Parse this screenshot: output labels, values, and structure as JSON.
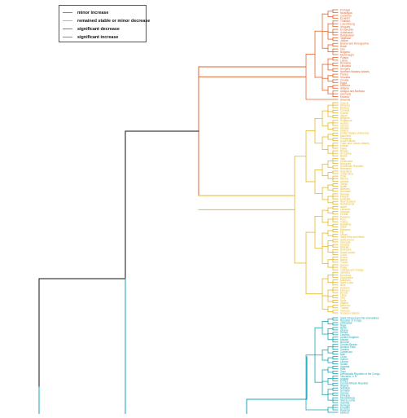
{
  "colors": {
    "trunk": "#111111",
    "minor_increase": "#e0662e",
    "stable": "#e5b82a",
    "significant_decrease": "#17a7b6",
    "significant_increase": "#3aa8b8"
  },
  "legend": [
    {
      "label": "minor increase",
      "color": "#e0662e"
    },
    {
      "label": "remained stable or minor decrease",
      "color": "#e5b82a"
    },
    {
      "label": "significant decrease",
      "color": "#17a7b6"
    },
    {
      "label": "significant increase",
      "color": "#3aa8b8"
    }
  ],
  "clusters": [
    {
      "name": "minor increase",
      "color": "#e0662e",
      "leaves": [
        "Portugal",
        "Nicaragua",
        "Colombia",
        "Ecuador",
        "Thailand",
        "Luxembourg",
        "Uruguay",
        "El Salvador",
        "Uzbekistan",
        "Bangladesh",
        "Tajikistan",
        "Jordan",
        "Bosnia and Herzegovina",
        "Brazil",
        "Iran",
        "Bulgaria",
        "Montenegro",
        "Poland",
        "Latvia",
        "Romania",
        "Lithuania",
        "Hungary",
        "Northern Mariana Islands",
        "France",
        "Slovakia",
        "Croatia",
        "Egypt",
        "Moldova",
        "Albania",
        "Antigua and Barbuda",
        "Germany",
        "Estonia",
        "Slovenia"
      ]
    },
    {
      "name": "remained stable or minor decrease",
      "color": "#e5b82a",
      "leaves": [
        "Cyprus",
        "Armenia",
        "Belarus",
        "Canada",
        "Kuwait",
        "Japan",
        "Belgium",
        "Singapore",
        "Austria",
        "Greece",
        "Ukraine",
        "Ireland",
        "United States of America",
        "Mauritius",
        "Paraguay",
        "Cook Islands",
        "Turks and Caicos Islands",
        "Kiribati",
        "Malta",
        "Bhutan",
        "Sri Lanka",
        "Belize",
        "Italy",
        "Venezuela",
        "Mongolia",
        "Dominican Republic",
        "Barbados",
        "Argentina",
        "Costa Rica",
        "Chile",
        "Mexico",
        "Iceland",
        "Tonga",
        "Spain",
        "Sweden",
        "Denmark",
        "Norway",
        "Finland",
        "Australia",
        "New Zealand",
        "Netherlands",
        "Israel",
        "Lebanon",
        "Georgia",
        "Serbia",
        "Panama",
        "Peru",
        "Turkey",
        "Bahamas",
        "Qatar",
        "Malaysia",
        "Fiji",
        "Oman",
        "Saint Kitts and Nevis",
        "Switzerland",
        "Grenada",
        "Guyana",
        "Bahrain",
        "Suriname",
        "Saudi Arabia",
        "Cuba",
        "Korea",
        "Nauru",
        "Tuvalu",
        "Samoa",
        "Palau",
        "Trinidad and Tobago",
        "Jamaica",
        "Dominica",
        "Seychelles",
        "Maldives",
        "Saint Lucia",
        "Niue",
        "Andorra",
        "Monaco",
        "Brunei",
        "Libya",
        "Iraq",
        "Syria",
        "Algeria",
        "Morocco",
        "Tunisia",
        "Vanuatu",
        "Solomon Islands"
      ]
    },
    {
      "name": "significant decrease",
      "color": "#17a7b6",
      "leaves": [
        "Saint Vincent and the Grenadines",
        "Republic of Congo",
        "Zimbabwe",
        "Niger",
        "Benin",
        "Ghana",
        "Kenya",
        "Lesotho",
        "United Kingdom",
        "Malawi",
        "Burundi",
        "Guinea-Bissau",
        "Burkina Faso",
        "Zambia",
        "Cameroon",
        "Mali",
        "Chad",
        "Gabon",
        "Liberia",
        "Sudan",
        "Uganda",
        "Haiti",
        "Togo",
        "Democratic Republic of the Congo",
        "Tanzania, U.R.",
        "Angola",
        "Eritrea",
        "Central African Republic",
        "Nigeria",
        "Namibia",
        "Somalia",
        "Guinea",
        "Ethiopia",
        "Mozambique",
        "Sierra Leone",
        "Gambia",
        "Senegal",
        "Eswatini",
        "Rwanda",
        "Djibouti"
      ]
    }
  ]
}
